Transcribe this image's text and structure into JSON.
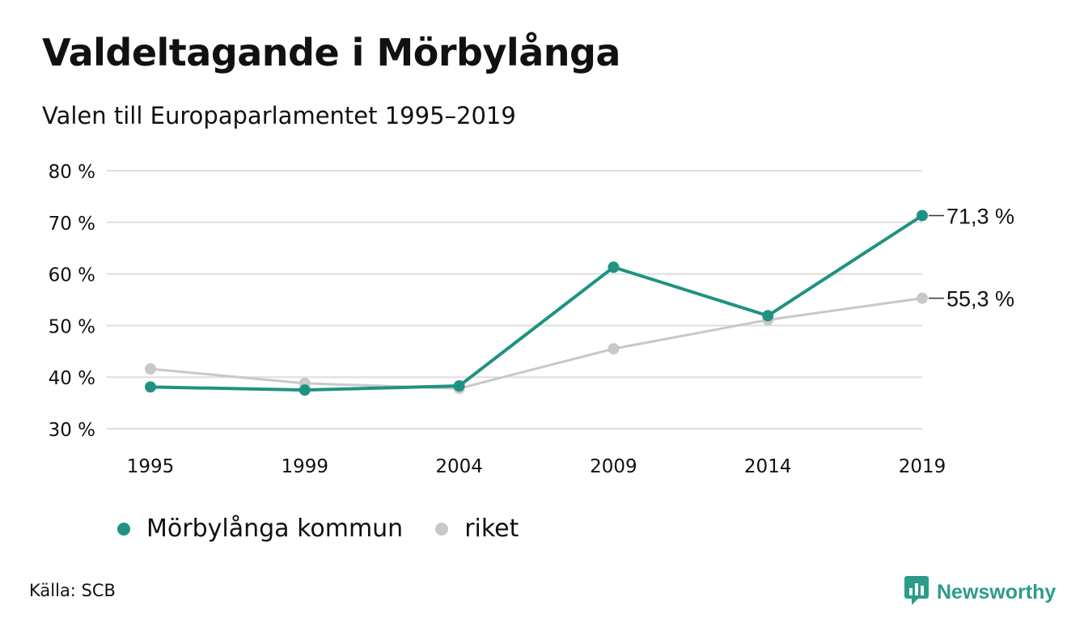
{
  "header": {
    "title": "Valdeltagande i Mörbylånga",
    "subtitle": "Valen till Europaparlamentet 1995–2019"
  },
  "chart_data": {
    "type": "line",
    "title": "Valdeltagande i Mörbylånga",
    "subtitle": "Valen till Europaparlamentet 1995–2019",
    "xlabel": "",
    "ylabel": "",
    "x": [
      1995,
      1999,
      2004,
      2009,
      2014,
      2019
    ],
    "x_tick_labels": [
      "1995",
      "1999",
      "2004",
      "2009",
      "2014",
      "2019"
    ],
    "y_ticks": [
      30,
      40,
      50,
      60,
      70,
      80
    ],
    "y_tick_labels": [
      "30 %",
      "40 %",
      "50 %",
      "60 %",
      "70 %",
      "80 %"
    ],
    "ylim": [
      30,
      80
    ],
    "grid": true,
    "legend_position": "bottom-left",
    "series": [
      {
        "name": "riket",
        "color": "#c8c8c8",
        "values": [
          41.6,
          38.8,
          37.8,
          45.5,
          51.1,
          55.3
        ],
        "end_label": "55,3 %"
      },
      {
        "name": "Mörbylånga kommun",
        "color": "#1f9281",
        "values": [
          38.1,
          37.5,
          38.3,
          61.3,
          51.9,
          71.3
        ],
        "end_label": "71,3 %"
      }
    ]
  },
  "legend": {
    "items": [
      {
        "label": "Mörbylånga kommun",
        "color": "#1f9281"
      },
      {
        "label": "riket",
        "color": "#c8c8c8"
      }
    ]
  },
  "footer": {
    "source": "Källa: SCB",
    "brand": "Newsworthy",
    "brand_icon": "newsworthy-logo-icon"
  }
}
